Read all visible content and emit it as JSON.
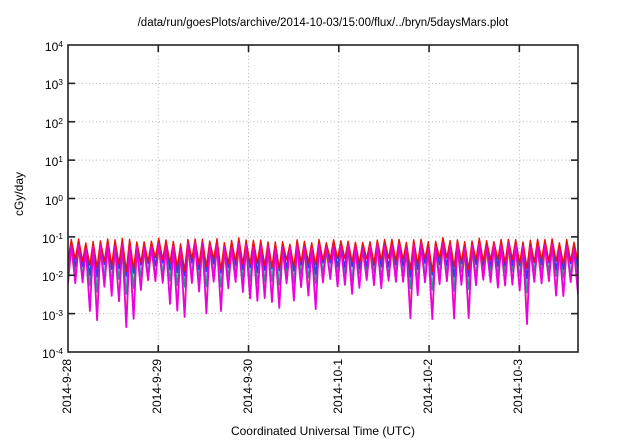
{
  "title": "/data/run/goesPlots/archive/2014-10-03/15:00/flux/../bryn/5daysMars.plot",
  "chart_data": {
    "type": "line",
    "title": "/data/run/goesPlots/archive/2014-10-03/15:00/flux/../bryn/5daysMars.plot",
    "xlabel": "Coordinated Universal Time (UTC)",
    "ylabel": "cGy/day",
    "y_scale": "log10",
    "y_max_exp": 4,
    "y_min_exp": -4,
    "y_tick_exponents": [
      4,
      3,
      2,
      1,
      0,
      -1,
      -2,
      -3,
      -4
    ],
    "x_tick_labels": [
      "2014-9-28",
      "2014-9-29",
      "2014-9-30",
      "2014-10-1",
      "2014-10-2",
      "2014-10-3"
    ],
    "x_days_total": 5.65,
    "grid": true,
    "grid_style": "dotted",
    "legend": "none",
    "waveform": "sawtooth oscillations, all series dip together; peaks near 1e-1, dips down to ~3e-4",
    "cycles_per_day": 12.4,
    "seed": 20141003,
    "frame_color": "#222222",
    "grid_color": "#b8b8b8",
    "series": [
      {
        "name": "yellow",
        "color": "#f2e713",
        "z": 1,
        "width": 1.4,
        "peak_log": -1.45,
        "min_log": -2.05,
        "depth_scale": 0.95,
        "approx_peak": 0.035,
        "approx_typical_min": 0.009,
        "approx_deepest_min": 0.0012
      },
      {
        "name": "cyan",
        "color": "#7cc8ea",
        "z": 2,
        "width": 1.4,
        "peak_log": -1.25,
        "min_log": -1.82,
        "depth_scale": 0.42,
        "approx_peak": 0.056,
        "approx_typical_min": 0.015,
        "approx_deepest_min": 0.006
      },
      {
        "name": "green",
        "color": "#0ca877",
        "z": 3,
        "width": 1.4,
        "peak_log": -1.33,
        "min_log": -1.92,
        "depth_scale": 0.55,
        "approx_peak": 0.047,
        "approx_typical_min": 0.012,
        "approx_deepest_min": 0.004
      },
      {
        "name": "blue",
        "color": "#2545e0",
        "z": 4,
        "width": 1.5,
        "peak_log": -1.17,
        "min_log": -1.72,
        "depth_scale": 0.33,
        "approx_peak": 0.068,
        "approx_typical_min": 0.019,
        "approx_deepest_min": 0.009
      },
      {
        "name": "red",
        "color": "#e81309",
        "z": 5,
        "width": 1.4,
        "peak_log": -1.1,
        "min_log": -1.6,
        "depth_scale": 0.28,
        "approx_peak": 0.079,
        "approx_typical_min": 0.025,
        "approx_deepest_min": 0.013
      },
      {
        "name": "magenta",
        "color": "#ee00dd",
        "z": 6,
        "width": 1.8,
        "peak_log": -1.24,
        "min_log": -2.15,
        "depth_scale": 1.15,
        "approx_peak": 0.058,
        "approx_typical_min": 0.007,
        "approx_deepest_min": 0.0004
      }
    ]
  }
}
